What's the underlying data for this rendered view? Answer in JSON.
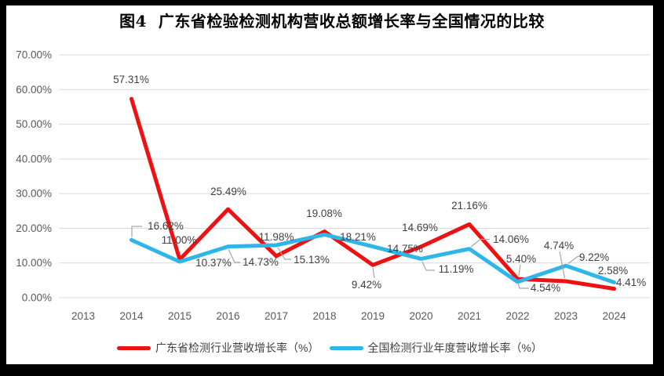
{
  "title": "图4  广东省检验检测机构营收总额增长率与全国情况的比较",
  "chart_data": {
    "type": "line",
    "title": "图4  广东省检验检测机构营收总额增长率与全国情况的比较",
    "categories": [
      "2013",
      "2014",
      "2015",
      "2016",
      "2017",
      "2018",
      "2019",
      "2020",
      "2021",
      "2022",
      "2023",
      "2024"
    ],
    "series": [
      {
        "name": "广东省检测行业营收增长率（%）",
        "color": "#ee1111",
        "values": [
          null,
          57.31,
          11.0,
          25.49,
          11.98,
          19.08,
          9.42,
          14.69,
          21.16,
          5.4,
          4.74,
          2.58
        ]
      },
      {
        "name": "全国检测行业年度营收增长率（%）",
        "color": "#2eb6e8",
        "values": [
          null,
          16.62,
          10.37,
          14.73,
          15.13,
          18.21,
          14.75,
          11.19,
          14.06,
          4.54,
          9.22,
          4.41
        ]
      }
    ],
    "ylim": [
      0,
      70
    ],
    "y_tick_step": 10,
    "y_tick_labels": [
      "70.00%",
      "60.00%",
      "50.00%",
      "40.00%",
      "30.00%",
      "20.00%",
      "10.00%",
      "0.00%"
    ],
    "x_tick_labels": [
      "2013",
      "2014",
      "2015",
      "2016",
      "2017",
      "2018",
      "2019",
      "2020",
      "2021",
      "2022",
      "2023",
      "2024"
    ],
    "grid": "horizontal",
    "legend_position": "bottom",
    "data_label_format": "0.00%"
  },
  "colors": {
    "frame": "#000000",
    "canvas": "#ffffff",
    "gridline": "#d9d9d9",
    "axis_text": "#595959",
    "data_label_text": "#404040",
    "leader_line": "#a6a6a6",
    "title_text": "#000000"
  }
}
